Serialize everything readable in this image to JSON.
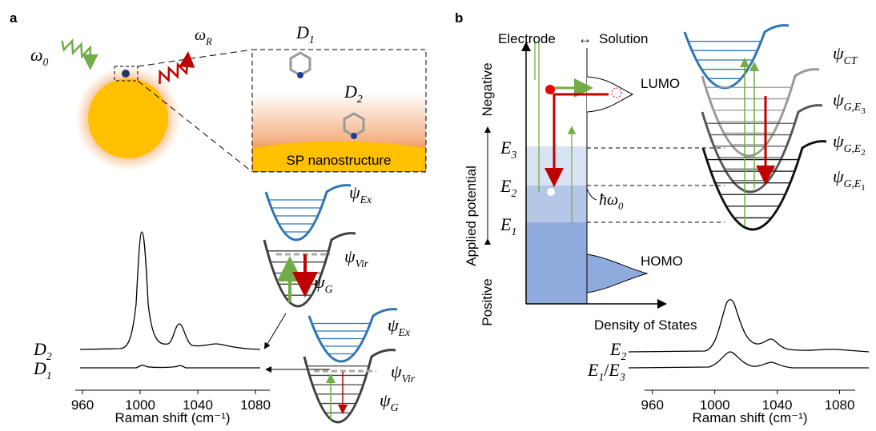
{
  "panel_a": {
    "label": "a",
    "omega_0": {
      "main": "ω",
      "sub": "0"
    },
    "omega_R": {
      "main": "ω",
      "sub": "R"
    },
    "molecule_1": {
      "main": "D",
      "sub": "1"
    },
    "molecule_2": {
      "main": "D",
      "sub": "2"
    },
    "substrate": "SP nanostructure",
    "upper_scheme": {
      "excited": {
        "main": "ψ",
        "sub": "Ex"
      },
      "virtual": {
        "main": "ψ",
        "sub": "Vir"
      },
      "ground": {
        "main": "ψ",
        "sub": "G"
      }
    },
    "lower_scheme": {
      "excited": {
        "main": "ψ",
        "sub": "Ex"
      },
      "virtual": {
        "main": "ψ",
        "sub": "Vir"
      },
      "ground": {
        "main": "ψ",
        "sub": "G"
      }
    },
    "spectrum": {
      "series_labels": [
        {
          "main": "D",
          "sub": "2"
        },
        {
          "main": "D",
          "sub": "1"
        }
      ],
      "xlim": [
        955,
        1090
      ],
      "xticks": [
        960,
        1000,
        1040,
        1080
      ],
      "xlabel": "Raman shift (cm⁻¹)"
    }
  },
  "panel_b": {
    "label": "b",
    "electrode": "Electrode",
    "arrow": "↔",
    "solution": "Solution",
    "negative": "Negative",
    "axis_label": "Applied potential",
    "positive": "Positive",
    "levels": [
      {
        "main": "E",
        "sub": "3"
      },
      {
        "main": "E",
        "sub": "2"
      },
      {
        "main": "E",
        "sub": "1"
      }
    ],
    "photon": {
      "main": "ħω",
      "sub": "0"
    },
    "lumo": "LUMO",
    "homo": "HOMO",
    "x_label": "Density of States",
    "states": [
      {
        "main": "ψ",
        "sub": "CT"
      },
      {
        "main": "ψ",
        "sub": "G,E",
        "subsub": "3"
      },
      {
        "main": "ψ",
        "sub": "G,E",
        "subsub": "2"
      },
      {
        "main": "ψ",
        "sub": "G,E",
        "subsub": "1"
      }
    ],
    "spectrum": {
      "series_labels": [
        {
          "main": "E",
          "sub": "2"
        },
        {
          "main": "E",
          "sub": "1",
          "tail": "/",
          "main2": "E",
          "sub2": "3"
        }
      ],
      "xlim": [
        955,
        1090
      ],
      "xticks": [
        960,
        1000,
        1040,
        1080
      ],
      "xlabel": "Raman shift (cm⁻¹)"
    }
  }
}
